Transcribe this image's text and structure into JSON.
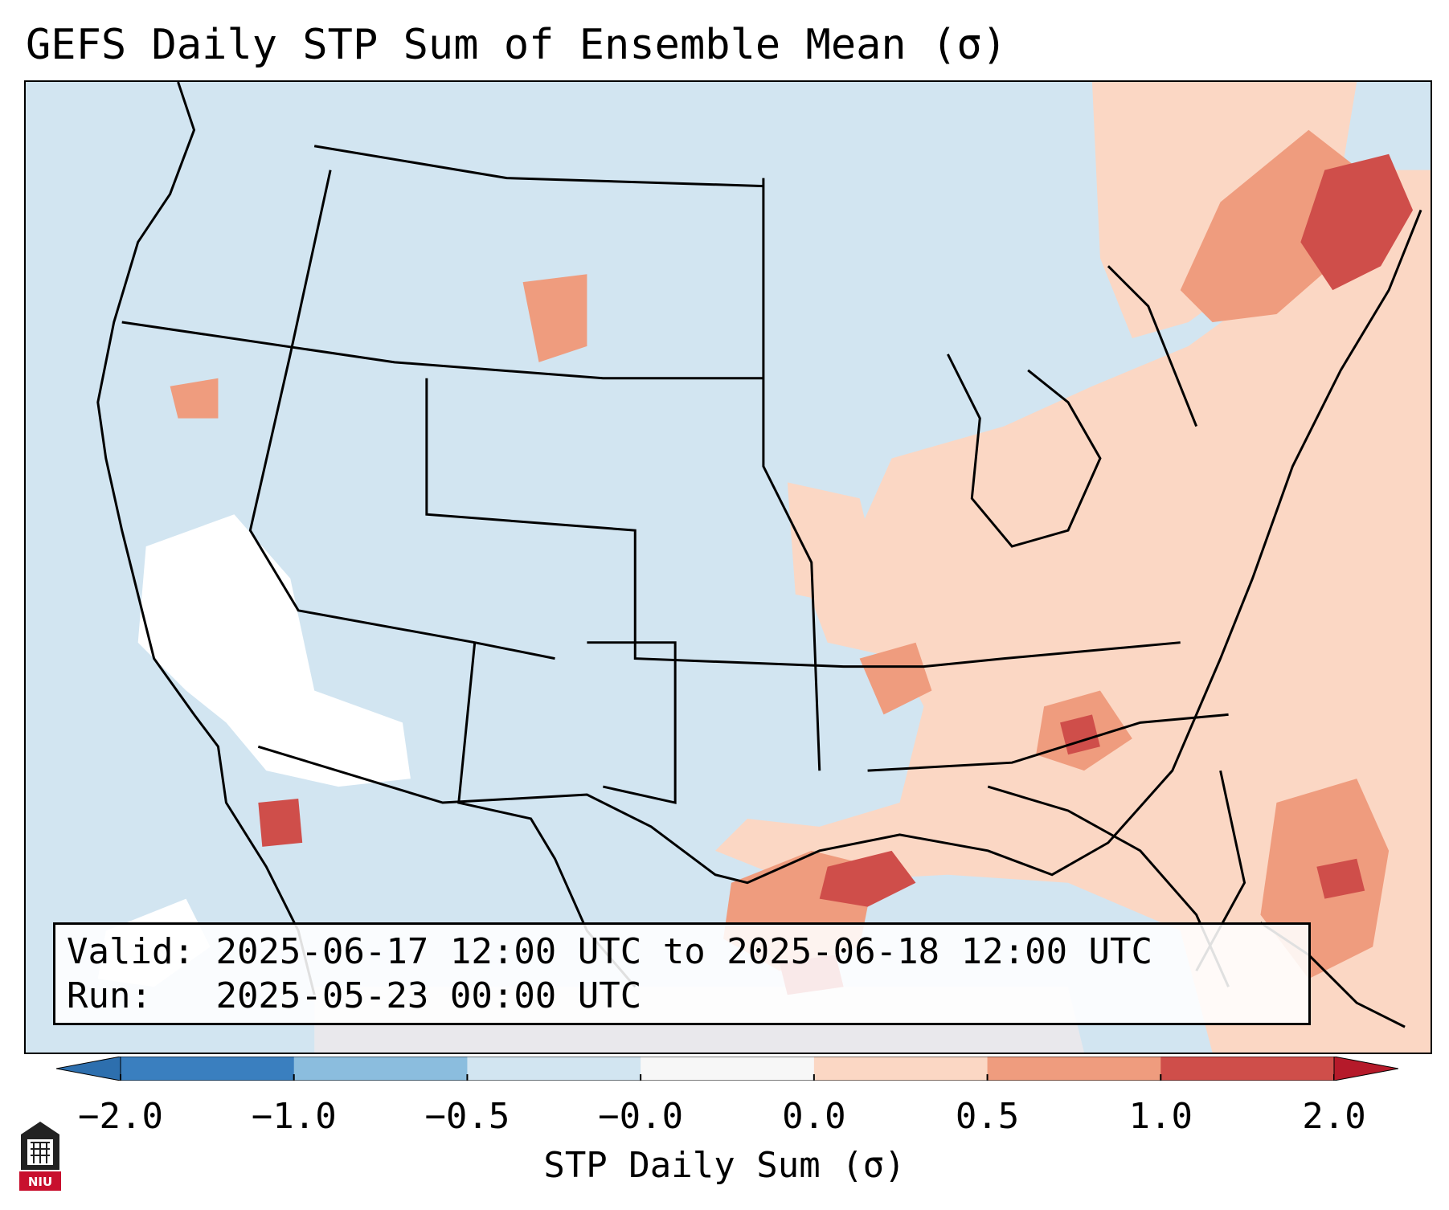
{
  "title": "GEFS Daily STP Sum of Ensemble Mean (σ)",
  "info": {
    "valid_label": "Valid:",
    "valid_value": "2025-06-17 12:00 UTC to 2025-06-18 12:00 UTC",
    "run_label": "Run:",
    "run_value": "2025-05-23 00:00 UTC"
  },
  "colorbar": {
    "label": "STP Daily Sum (σ)",
    "ticks": [
      "−2.0",
      "−1.0",
      "−0.5",
      "−0.0",
      "0.0",
      "0.5",
      "1.0",
      "2.0"
    ],
    "colors": [
      "#3a7fbf",
      "#8bbdde",
      "#d2e5f1",
      "#f7f7f7",
      "#fbd7c4",
      "#ef9c7e",
      "#cf4e4a"
    ],
    "under_color": "#2d6fae",
    "over_color": "#b51a2a"
  },
  "logo": {
    "text": "NIU"
  }
}
